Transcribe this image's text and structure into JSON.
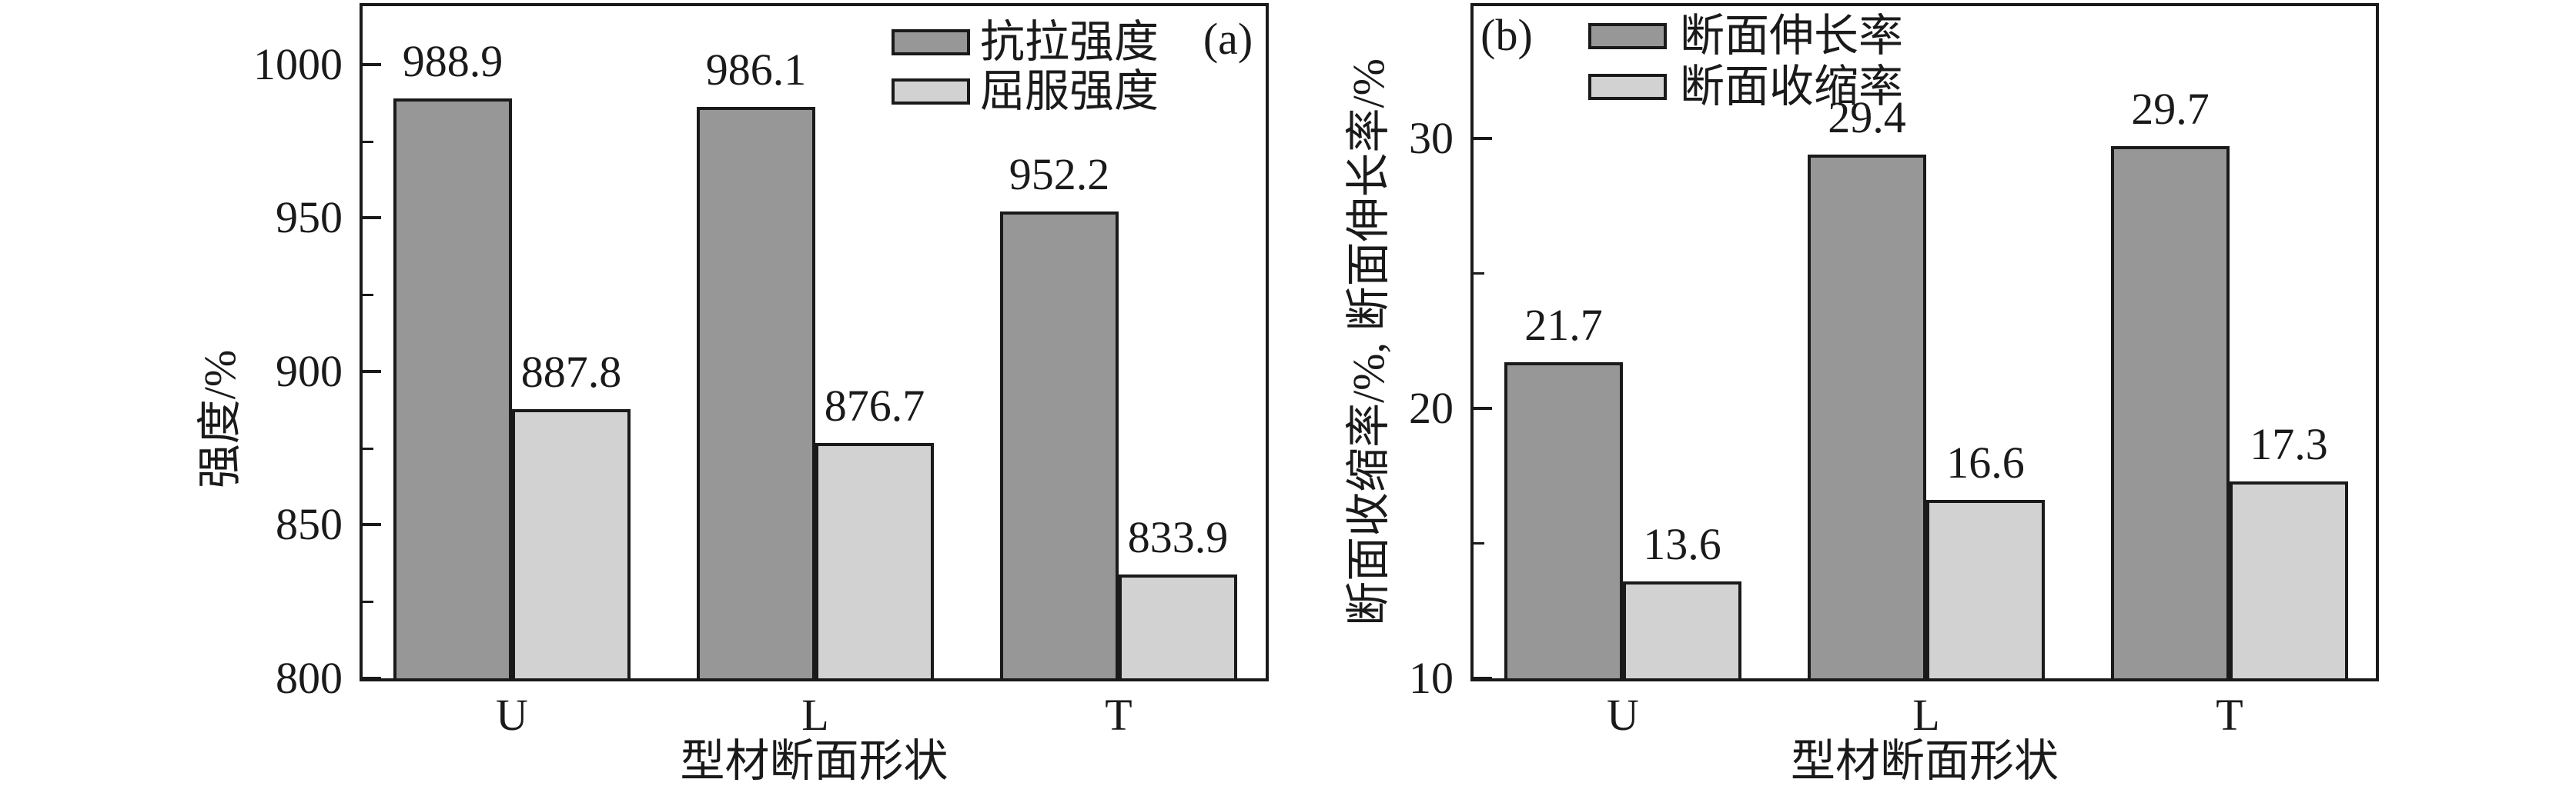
{
  "figure": {
    "background": "#ffffff",
    "ink_color": "#1a1a1a",
    "bar_dark_color": "#979797",
    "bar_light_color": "#d2d2d2"
  },
  "chart_data": [
    {
      "type": "bar",
      "panel_label": "(a)",
      "categories": [
        "U",
        "L",
        "T"
      ],
      "xlabel": "型材断面形状",
      "ylabel": "强度/%",
      "ylim": [
        800,
        1020
      ],
      "yticks": [
        800,
        850,
        900,
        950,
        1000
      ],
      "yticks_minor": [
        825,
        875,
        925,
        975
      ],
      "grid": false,
      "legend_position": "top-right-inside",
      "series": [
        {
          "name": "抗拉强度",
          "color": "#979797",
          "values": [
            988.9,
            986.1,
            952.2
          ]
        },
        {
          "name": "屈服强度",
          "color": "#d2d2d2",
          "values": [
            887.8,
            876.7,
            833.9
          ]
        }
      ]
    },
    {
      "type": "bar",
      "panel_label": "(b)",
      "categories": [
        "U",
        "L",
        "T"
      ],
      "xlabel": "型材断面形状",
      "ylabel": "断面收缩率/%, 断面伸长率/%",
      "ylim": [
        10,
        35
      ],
      "yticks": [
        10,
        20,
        30
      ],
      "yticks_minor": [
        15,
        25
      ],
      "grid": false,
      "legend_position": "top-left-inside",
      "series": [
        {
          "name": "断面伸长率",
          "color": "#979797",
          "values": [
            21.7,
            29.4,
            29.7
          ]
        },
        {
          "name": "断面收缩率",
          "color": "#d2d2d2",
          "values": [
            13.6,
            16.6,
            17.3
          ]
        }
      ]
    }
  ]
}
